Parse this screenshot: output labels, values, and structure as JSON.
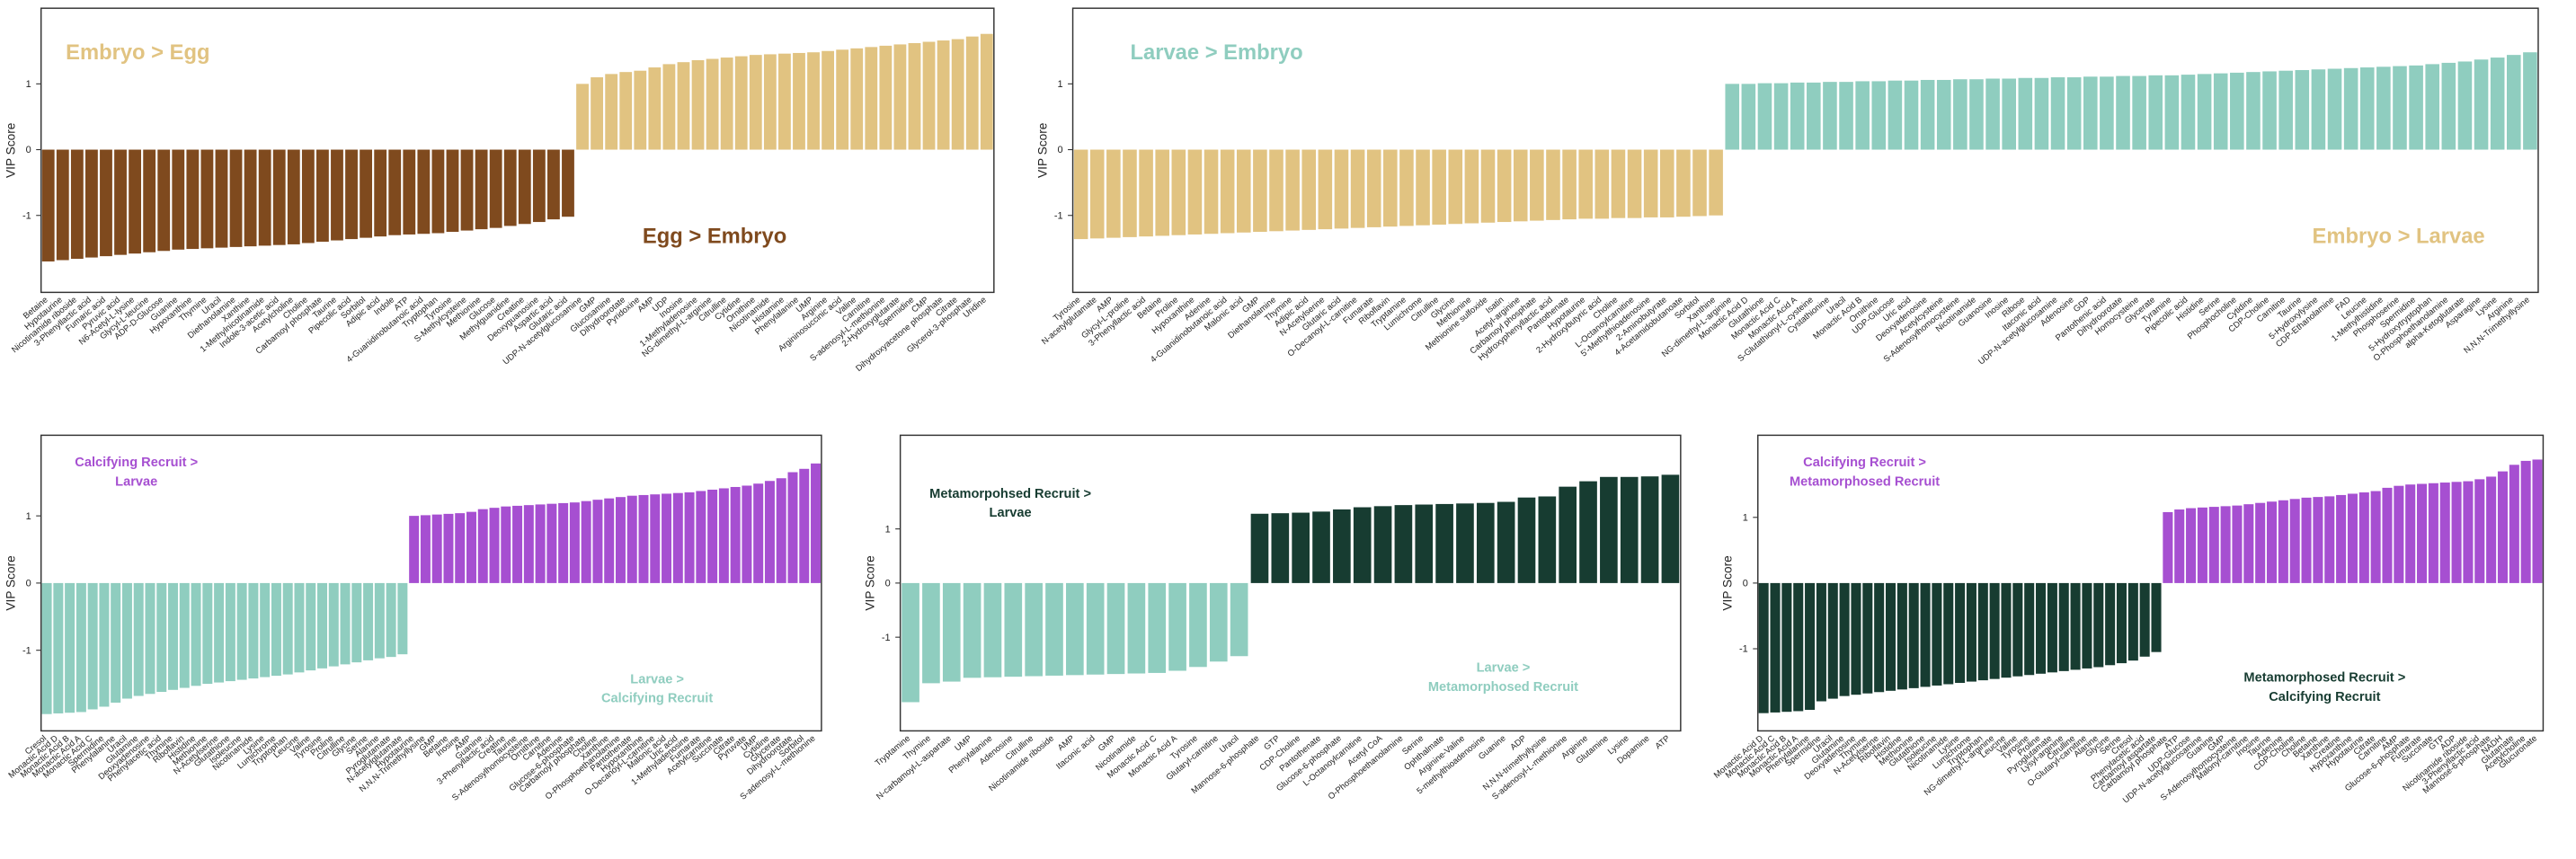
{
  "chart_data": [
    {
      "type": "bar",
      "ylabel": "VIP Score",
      "categories": [
        "Betaine",
        "Hypotaurine",
        "Nicotinamide riboside",
        "3-Phenyllactic acid",
        "Fumaric acid",
        "Pyruvic acid",
        "N6-Acetyl-L-lysine",
        "Glycyl-L-leucine",
        "ADP-D-Glucose",
        "Guanine",
        "Hypoxanthine",
        "Thymine",
        "Uracil",
        "Diethanolamine",
        "Xanthine",
        "1-Methylnicotinamide",
        "Indole-3-acetic acid",
        "Acetylcholine",
        "Choline",
        "Carbamoyl phosphate",
        "Taurine",
        "Pipecolic acid",
        "Sorbitol",
        "Adipic acid",
        "Indole",
        "ATP",
        "4-Guanidinobutanoic acid",
        "Tryptophan",
        "Tyrosine",
        "S-Methylcysteine",
        "Methionine",
        "Glucose",
        "Methylguanidine",
        "Creatine",
        "Deoxyguanosine",
        "Aspartic acid",
        "Glutaric acid",
        "UDP-N-acetylglucosamine",
        "GMP",
        "Glucosamine",
        "Dihydroorotate",
        "Pyridoxine",
        "AMP",
        "UDP",
        "Inosine",
        "1-Methyladenosine",
        "NG-dimethyl-L-arginine",
        "Citrulline",
        "Cytidine",
        "Ornithine",
        "Nicotinamide",
        "Histamine",
        "Phenylalanine",
        "UMP",
        "Arginine",
        "Argininosuccinic acid",
        "Valine",
        "Carnitine",
        "S-adenosyl-L-methionine",
        "2-Hydroxyglutarate",
        "Spermidine",
        "CMP",
        "Dihydroxyacetone phosphate",
        "Citrate",
        "Glycerol-3-phosphate",
        "Uridine"
      ],
      "values": [
        -1.7,
        -1.68,
        -1.66,
        -1.64,
        -1.62,
        -1.6,
        -1.58,
        -1.56,
        -1.54,
        -1.52,
        -1.51,
        -1.5,
        -1.49,
        -1.48,
        -1.47,
        -1.46,
        -1.45,
        -1.44,
        -1.42,
        -1.4,
        -1.38,
        -1.36,
        -1.34,
        -1.32,
        -1.3,
        -1.29,
        -1.28,
        -1.27,
        -1.25,
        -1.23,
        -1.21,
        -1.19,
        -1.16,
        -1.13,
        -1.1,
        -1.06,
        -1.02,
        1.0,
        1.1,
        1.15,
        1.18,
        1.2,
        1.25,
        1.3,
        1.33,
        1.36,
        1.38,
        1.4,
        1.42,
        1.44,
        1.45,
        1.46,
        1.47,
        1.48,
        1.5,
        1.52,
        1.54,
        1.56,
        1.58,
        1.6,
        1.62,
        1.64,
        1.66,
        1.68,
        1.72,
        1.76
      ],
      "bar_colors": {
        "negative": "#7f4a1e",
        "positive": "#e1c381"
      },
      "annotations": [
        {
          "lines": [
            "Embryo > Egg"
          ],
          "color": "#e1c381"
        },
        {
          "lines": [
            "Egg > Embryo"
          ],
          "color": "#7f4a1e"
        }
      ],
      "ylim": [
        -2.17,
        2.15
      ],
      "yticks": [
        -1,
        0,
        1
      ]
    },
    {
      "type": "bar",
      "ylabel": "VIP Score",
      "categories": [
        "Tyrosine",
        "N-acetylglutamate",
        "AMP",
        "Glycyl-L-proline",
        "3-Phenyllactic acid",
        "Betaine",
        "Proline",
        "Hypoxanthine",
        "Adenine",
        "4-Guanidinobutanoic acid",
        "Malonic acid",
        "GMP",
        "Diethanolamine",
        "Thymine",
        "Adipic acid",
        "N-Acetylserine",
        "Glutaric acid",
        "O-Decanoyl-L-carnitine",
        "Fumarate",
        "Riboflavin",
        "Tryptamine",
        "Lumichrome",
        "Citrulline",
        "Glycine",
        "Methionine",
        "Methionine sulfoxide",
        "Isatin",
        "Acetyl-arginine",
        "Carbamoyl phosphate",
        "Hydroxyphenyllactic acid",
        "Pantothenate",
        "Hypotaurine",
        "2-Hydroxybutyric acid",
        "Choline",
        "L-Octanoylcarnitine",
        "5'-Methylthioadenosine",
        "2-Aminobutyrate",
        "4-Acetamidobutanoate",
        "Sorbitol",
        "Xanthine",
        "NG-dimethyl-L-arginine",
        "Monactic Acid D",
        "Glutathione",
        "Monactic Acid C",
        "Monactic Acid A",
        "S-Glutathionyl-L-cysteine",
        "Cystathionine",
        "Uracil",
        "Monactic Acid B",
        "Ornithine",
        "UDP-Glucose",
        "Uric acid",
        "Deoxyadenosine",
        "Acetylcysteine",
        "S-Adenosylhomocysteine",
        "Nicotinamide",
        "Guanosine",
        "Inosine",
        "Ribose",
        "Itaconic acid",
        "UDP-N-acetylglucosamine",
        "Adenosine",
        "GDP",
        "Pantothenic acid",
        "Dihydroorotate",
        "Homocysteine",
        "Glycerate",
        "Tyramine",
        "Pipecolic acid",
        "Histidine",
        "Serine",
        "Phosphocholine",
        "Cytidine",
        "CDP-Choline",
        "Carnitine",
        "Taurine",
        "5-Hydroxylysine",
        "CDP-Ethanolamine",
        "FAD",
        "Leucine",
        "1-Methylhistidine",
        "Phosphoserine",
        "Spermidine",
        "5-Hydroxytryptophan",
        "O-Phosphoethanolamine",
        "alpha-Ketoglutarate",
        "Asparagine",
        "Lysine",
        "Arginine",
        "N,N,N-Trimethyllysine"
      ],
      "values": [
        -1.36,
        -1.35,
        -1.34,
        -1.33,
        -1.32,
        -1.31,
        -1.3,
        -1.29,
        -1.28,
        -1.27,
        -1.26,
        -1.25,
        -1.24,
        -1.23,
        -1.22,
        -1.21,
        -1.2,
        -1.19,
        -1.18,
        -1.17,
        -1.16,
        -1.15,
        -1.14,
        -1.13,
        -1.12,
        -1.11,
        -1.1,
        -1.09,
        -1.08,
        -1.07,
        -1.06,
        -1.05,
        -1.05,
        -1.04,
        -1.04,
        -1.03,
        -1.03,
        -1.02,
        -1.01,
        -1.0,
        1.0,
        1.0,
        1.01,
        1.01,
        1.02,
        1.02,
        1.03,
        1.03,
        1.04,
        1.04,
        1.05,
        1.05,
        1.06,
        1.06,
        1.07,
        1.07,
        1.08,
        1.08,
        1.09,
        1.09,
        1.1,
        1.1,
        1.11,
        1.11,
        1.12,
        1.12,
        1.13,
        1.13,
        1.14,
        1.15,
        1.16,
        1.17,
        1.18,
        1.19,
        1.2,
        1.21,
        1.22,
        1.23,
        1.24,
        1.25,
        1.26,
        1.27,
        1.28,
        1.3,
        1.32,
        1.34,
        1.37,
        1.4,
        1.44,
        1.48
      ],
      "bar_colors": {
        "negative": "#e1c381",
        "positive": "#8fcdbf"
      },
      "annotations": [
        {
          "lines": [
            "Larvae > Embryo"
          ],
          "color": "#8fcdbf"
        },
        {
          "lines": [
            "Embryo > Larvae"
          ],
          "color": "#e1c381"
        }
      ],
      "ylim": [
        -2.17,
        2.15
      ],
      "yticks": [
        -1,
        0,
        1
      ]
    },
    {
      "type": "bar",
      "ylabel": "VIP Score",
      "categories": [
        "Cresol",
        "Monactic Acid D",
        "Monactic Acid B",
        "Monactic Acid A",
        "Monactic Acid C",
        "Spermidine",
        "Phenylalanine",
        "Uracil",
        "Glutamine",
        "Deoxyadenosine",
        "Phenylacetic acid",
        "Thymine",
        "Riboflavin",
        "Histidine",
        "Methionine",
        "N-Acetylserine",
        "Glutathione",
        "Isoleucine",
        "Nicotinamide",
        "Lysine",
        "Lumichrome",
        "Tryptophan",
        "Leucine",
        "Valine",
        "Tyrosine",
        "Proline",
        "Citrulline",
        "Glycine",
        "Serine",
        "Alanine",
        "Pyroglutamate",
        "N-acetylglutamate",
        "Hypotaurine",
        "N,N,N-Trimethyllysine",
        "GMP",
        "Betaine",
        "Inosine",
        "AMP",
        "Guanine",
        "3-Phenyllactic acid",
        "Creatine",
        "Taurine",
        "S-Adenosylhomocysteine",
        "Ornithine",
        "Carnitine",
        "Adenine",
        "Glucose-6-phosphate",
        "Carbamoyl phosphate",
        "Choline",
        "Xanthine",
        "O-Phosphoethanolamine",
        "Pantothenate",
        "Hypoxanthine",
        "O-Decanoyl-L-carnitine",
        "Malonic acid",
        "Uric acid",
        "1-Methyladenosine",
        "Fumarate",
        "Acetylcarnitine",
        "Succinate",
        "Citrate",
        "Pyruvate",
        "UMP",
        "Cytidine",
        "Glycerate",
        "Dihydroorotate",
        "Sorbitol",
        "S-adenosyl-L-methionine"
      ],
      "values": [
        -1.95,
        -1.94,
        -1.93,
        -1.92,
        -1.88,
        -1.84,
        -1.78,
        -1.72,
        -1.68,
        -1.65,
        -1.62,
        -1.59,
        -1.56,
        -1.53,
        -1.5,
        -1.48,
        -1.46,
        -1.44,
        -1.42,
        -1.4,
        -1.38,
        -1.36,
        -1.33,
        -1.3,
        -1.27,
        -1.24,
        -1.21,
        -1.18,
        -1.15,
        -1.12,
        -1.1,
        -1.06,
        1.0,
        1.01,
        1.02,
        1.03,
        1.04,
        1.06,
        1.1,
        1.12,
        1.14,
        1.15,
        1.16,
        1.17,
        1.18,
        1.19,
        1.2,
        1.22,
        1.24,
        1.26,
        1.28,
        1.3,
        1.31,
        1.32,
        1.33,
        1.34,
        1.35,
        1.37,
        1.39,
        1.41,
        1.43,
        1.45,
        1.48,
        1.52,
        1.56,
        1.65,
        1.7,
        1.78
      ],
      "bar_colors": {
        "negative": "#8fcdbf",
        "positive": "#a64fd1"
      },
      "annotations": [
        {
          "lines": [
            "Calcifying Recruit >",
            "Larvae"
          ],
          "color": "#a64fd1"
        },
        {
          "lines": [
            "Larvae >",
            "Calcifying Recruit"
          ],
          "color": "#8fcdbf"
        }
      ],
      "ylim": [
        -2.2,
        2.2
      ],
      "yticks": [
        -1,
        0,
        1
      ]
    },
    {
      "type": "bar",
      "ylabel": "VIP Score",
      "categories": [
        "Tryptamine",
        "Thymine",
        "N-carbamoyl-L-aspartate",
        "UMP",
        "Phenylalanine",
        "Adenosine",
        "Citrulline",
        "Nicotinamide riboside",
        "AMP",
        "Itaconic acid",
        "GMP",
        "Nicotinamide",
        "Monactic Acid C",
        "Monactic Acid A",
        "Tyrosine",
        "Glutaryl-carnitine",
        "Uracil",
        "Mannose-6-phosphate",
        "GTP",
        "CDP-Choline",
        "Pantothenate",
        "Glucose-6-phosphate",
        "L-Octanoylcarnitine",
        "Acetyl CoA",
        "O-Phosphoethanolamine",
        "Serine",
        "Ophthalmate",
        "Arginine-Valine",
        "5-methylthioadenosine",
        "Guanine",
        "ADP",
        "N,N,N-trimethyllysine",
        "S-adenosyl-L-methionine",
        "Arginine",
        "Glutamine",
        "Lysine",
        "Dopamine",
        "ATP"
      ],
      "values": [
        -2.2,
        -1.85,
        -1.82,
        -1.75,
        -1.74,
        -1.73,
        -1.72,
        -1.71,
        -1.7,
        -1.69,
        -1.68,
        -1.67,
        -1.66,
        -1.62,
        -1.55,
        -1.45,
        -1.35,
        1.28,
        1.29,
        1.3,
        1.32,
        1.36,
        1.4,
        1.42,
        1.44,
        1.45,
        1.46,
        1.47,
        1.48,
        1.5,
        1.58,
        1.6,
        1.78,
        1.88,
        1.96,
        1.96,
        1.97,
        2.0
      ],
      "bar_colors": {
        "negative": "#8fcdbf",
        "positive": "#173c31"
      },
      "annotations": [
        {
          "lines": [
            "Metamorpohsed Recruit >",
            "Larvae"
          ],
          "color": "#173c31"
        },
        {
          "lines": [
            "Larvae >",
            "Metamorphosed Recruit"
          ],
          "color": "#8fcdbf"
        }
      ],
      "ylim": [
        -2.73,
        2.73
      ],
      "yticks": [
        -1,
        0,
        1
      ]
    },
    {
      "type": "bar",
      "ylabel": "VIP Score",
      "categories": [
        "Monactic Acid D",
        "Monactic Acid C",
        "Monactic Acid B",
        "Monactic Acid A",
        "Phenylalanine",
        "Spermidine",
        "Uracil",
        "Glutamine",
        "Deoxyadenosine",
        "Thymine",
        "N-Acetylserine",
        "Riboflavin",
        "Histidine",
        "Methionine",
        "Glutathione",
        "Isoleucine",
        "Nicotinamide",
        "Lysine",
        "Lumichrome",
        "Tryptophan",
        "NG-dimethyl-L-arginine",
        "Leucine",
        "Valine",
        "Tyrosine",
        "Proline",
        "Pyroglutamate",
        "Lysyl-arginine",
        "Citrulline",
        "O-Glutaryl-carnitine",
        "Alanine",
        "Glycine",
        "Serine",
        "Cresol",
        "Phenylacetic acid",
        "Carbamoyl aspartate",
        "Carbamoyl phosphate",
        "ATP",
        "UDP-Glucose",
        "UDP-N-acetylglucosamine",
        "Guanine",
        "GMP",
        "S-Adenosylhomocysteine",
        "Malonyl-carnitine",
        "Inosine",
        "Taurine",
        "Adenine",
        "CDP-Choline",
        "Choline",
        "Betaine",
        "Xanthine",
        "Creatine",
        "Hypoxanthine",
        "Hypotaurine",
        "Citrate",
        "Carnitine",
        "AMP",
        "Glucose-6-phosphate",
        "Fumarate",
        "Succinate",
        "GTP",
        "ADP",
        "Nicotinamide riboside",
        "3-Phenyllactic acid",
        "Mannose-6-phosphate",
        "NADH",
        "Glutamate",
        "Acetylcholine",
        "Glucuronate"
      ],
      "values": [
        -1.98,
        -1.97,
        -1.96,
        -1.95,
        -1.93,
        -1.8,
        -1.76,
        -1.72,
        -1.7,
        -1.68,
        -1.66,
        -1.64,
        -1.62,
        -1.6,
        -1.58,
        -1.56,
        -1.54,
        -1.52,
        -1.5,
        -1.48,
        -1.46,
        -1.44,
        -1.42,
        -1.4,
        -1.38,
        -1.36,
        -1.34,
        -1.32,
        -1.3,
        -1.28,
        -1.25,
        -1.22,
        -1.18,
        -1.12,
        -1.05,
        1.08,
        1.12,
        1.14,
        1.15,
        1.16,
        1.17,
        1.18,
        1.2,
        1.22,
        1.24,
        1.26,
        1.28,
        1.3,
        1.31,
        1.32,
        1.34,
        1.36,
        1.38,
        1.4,
        1.45,
        1.48,
        1.5,
        1.51,
        1.52,
        1.53,
        1.54,
        1.55,
        1.58,
        1.62,
        1.7,
        1.8,
        1.86,
        1.88
      ],
      "bar_colors": {
        "negative": "#173c31",
        "positive": "#a64fd1"
      },
      "annotations": [
        {
          "lines": [
            "Calcifying Recruit >",
            "Metamorphosed Recruit"
          ],
          "color": "#a64fd1"
        },
        {
          "lines": [
            "Metamorphosed Recruit >",
            "Calcifying Recruit"
          ],
          "color": "#173c31"
        }
      ],
      "ylim": [
        -2.25,
        2.25
      ],
      "yticks": [
        -1,
        0,
        1
      ]
    }
  ]
}
